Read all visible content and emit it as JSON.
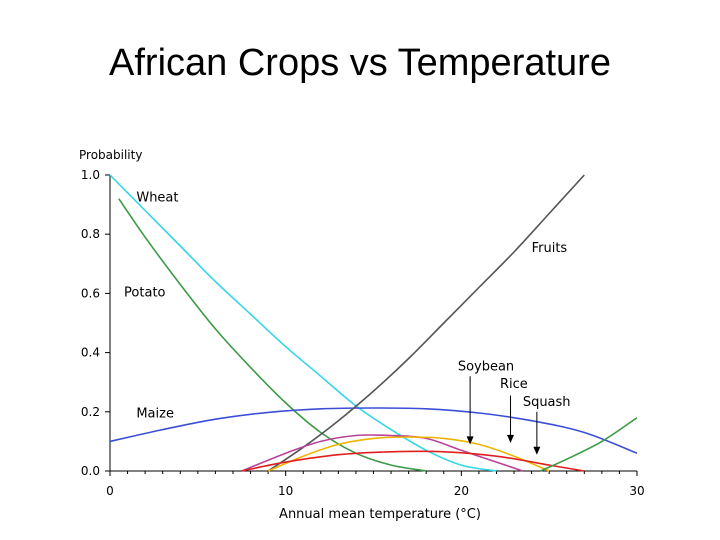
{
  "slide": {
    "title": "African Crops vs Temperature"
  },
  "chart_data": {
    "type": "line",
    "title": "",
    "xlabel": "Annual mean temperature (°C)",
    "ylabel": "Probability",
    "xlim": [
      0,
      30
    ],
    "ylim": [
      0,
      1.0
    ],
    "xticks": [
      "0",
      "10",
      "20",
      "30"
    ],
    "xtick_values": [
      0,
      10,
      20,
      30
    ],
    "yticks": [
      "0.0",
      "0.2",
      "0.4",
      "0.6",
      "0.8",
      "1.0"
    ],
    "ytick_values": [
      0.0,
      0.2,
      0.4,
      0.6,
      0.8,
      1.0
    ],
    "series": [
      {
        "name": "Wheat",
        "color": "#33d6e8",
        "x": [
          0,
          2,
          4,
          6,
          8,
          10,
          12,
          14,
          16,
          18,
          20,
          22
        ],
        "y": [
          1.0,
          0.88,
          0.76,
          0.64,
          0.53,
          0.42,
          0.32,
          0.22,
          0.14,
          0.07,
          0.02,
          0.0
        ]
      },
      {
        "name": "Potato",
        "color": "#3c9a46",
        "x": [
          0.5,
          2,
          4,
          6,
          8,
          10,
          12,
          14,
          16,
          18
        ],
        "y": [
          0.92,
          0.79,
          0.63,
          0.48,
          0.35,
          0.23,
          0.13,
          0.06,
          0.02,
          0.0
        ]
      },
      {
        "name": "Maize",
        "color": "#3b4fd6",
        "x": [
          0,
          3,
          6,
          9,
          12,
          15,
          18,
          21,
          24,
          27,
          30
        ],
        "y": [
          0.1,
          0.14,
          0.175,
          0.198,
          0.21,
          0.213,
          0.21,
          0.196,
          0.17,
          0.13,
          0.06
        ]
      },
      {
        "name": "Fruits",
        "color": "#555555",
        "x": [
          9,
          11,
          13,
          15,
          17,
          19,
          21,
          23,
          25,
          27
        ],
        "y": [
          0.0,
          0.08,
          0.17,
          0.27,
          0.38,
          0.5,
          0.62,
          0.74,
          0.87,
          1.0
        ]
      },
      {
        "name": "Soybean",
        "color": "#b8439a",
        "x": [
          7.5,
          10,
          12,
          14,
          16,
          18,
          20,
          22,
          23.5
        ],
        "y": [
          0.0,
          0.06,
          0.1,
          0.12,
          0.12,
          0.11,
          0.07,
          0.03,
          0.0
        ]
      },
      {
        "name": "Rice",
        "color": "#f0b400",
        "x": [
          9,
          11,
          13,
          15,
          17,
          19,
          21,
          23,
          25
        ],
        "y": [
          0.0,
          0.05,
          0.09,
          0.11,
          0.115,
          0.11,
          0.09,
          0.05,
          0.0
        ]
      },
      {
        "name": "Squash",
        "color": "#e02020",
        "x": [
          7.5,
          10,
          13,
          16,
          19,
          22,
          25,
          27
        ],
        "y": [
          0.0,
          0.03,
          0.055,
          0.065,
          0.065,
          0.05,
          0.02,
          0.0
        ]
      },
      {
        "name": "",
        "color": "#3c9a46",
        "x": [
          24.5,
          26,
          28,
          30
        ],
        "y": [
          0.0,
          0.04,
          0.1,
          0.18
        ]
      }
    ],
    "annotations": [
      {
        "text": "Wheat",
        "x": 1.5,
        "y": 0.91
      },
      {
        "text": "Potato",
        "x": 0.8,
        "y": 0.59
      },
      {
        "text": "Maize",
        "x": 1.5,
        "y": 0.18
      },
      {
        "text": "Fruits",
        "x": 24,
        "y": 0.74
      },
      {
        "text": "Soybean",
        "x": 19.8,
        "y": 0.34
      },
      {
        "text": "Rice",
        "x": 22.2,
        "y": 0.28
      },
      {
        "text": "Squash",
        "x": 23.5,
        "y": 0.22
      }
    ],
    "arrows": [
      {
        "label": "Soybean",
        "x": 20.5,
        "from_y": 0.32,
        "to_y": 0.09
      },
      {
        "label": "Rice",
        "x": 22.8,
        "from_y": 0.255,
        "to_y": 0.095
      },
      {
        "label": "Squash",
        "x": 24.3,
        "from_y": 0.2,
        "to_y": 0.055
      }
    ]
  }
}
